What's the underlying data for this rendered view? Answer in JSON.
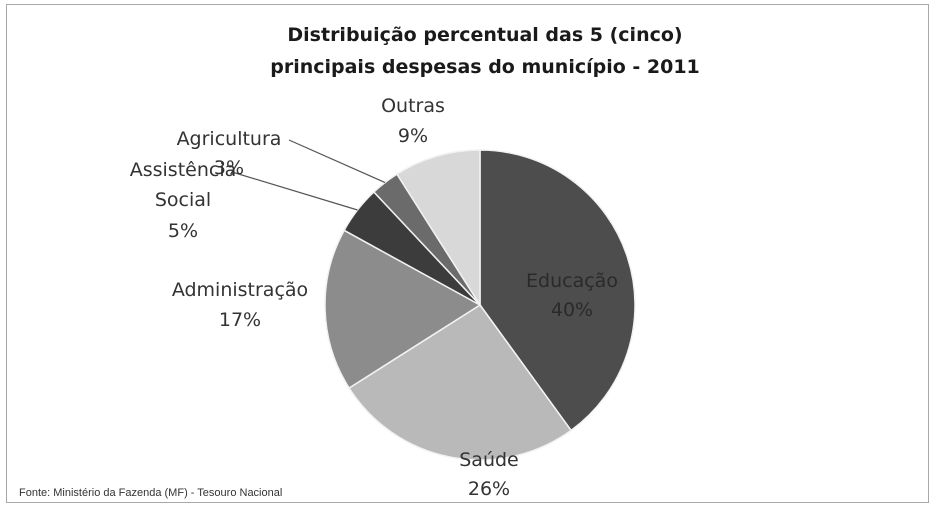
{
  "chart_data": {
    "type": "pie",
    "title": "Distribuição percentual das 5 (cinco)",
    "subtitle": "principais despesas do município - 2011",
    "categories": [
      "Educação",
      "Saúde",
      "Administração",
      "Assistência Social",
      "Agricultura",
      "Outras"
    ],
    "values": [
      40,
      26,
      17,
      5,
      3,
      9
    ],
    "value_labels": [
      "40%",
      "26%",
      "17%",
      "5%",
      "3%",
      "9%"
    ],
    "colors": [
      "#4d4d4d",
      "#b9b9b9",
      "#8c8c8c",
      "#3c3c3c",
      "#6b6b6b",
      "#d8d8d8"
    ],
    "legend": "none",
    "source": "Fonte: Ministério da Fazenda (MF) - Tesouro Nacional"
  }
}
